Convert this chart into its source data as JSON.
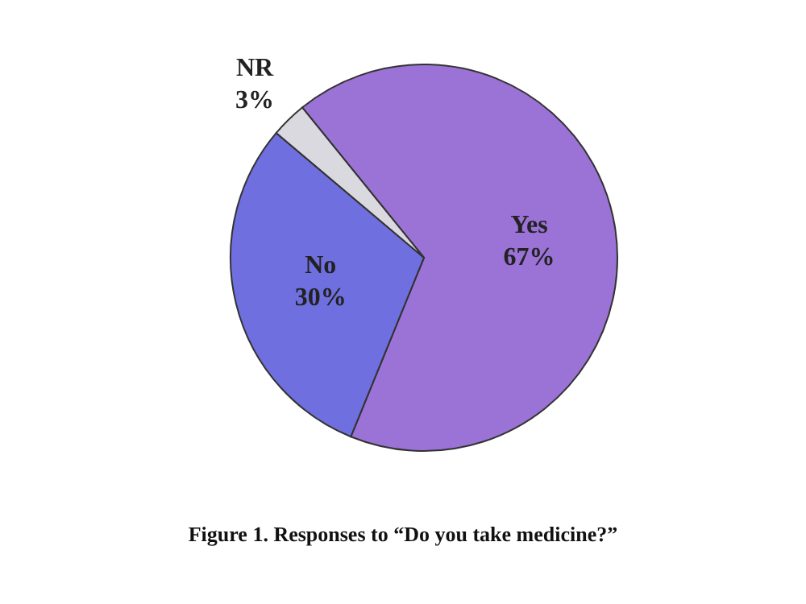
{
  "chart_data": {
    "type": "pie",
    "title": "Figure 1. Responses to “Do you take medicine?”",
    "categories": [
      "Yes",
      "No",
      "NR"
    ],
    "values": [
      67,
      30,
      3
    ],
    "value_labels": [
      "67%",
      "30%",
      "3%"
    ],
    "colors": [
      "#9b72d6",
      "#6f6fe0",
      "#d9d9df"
    ]
  }
}
